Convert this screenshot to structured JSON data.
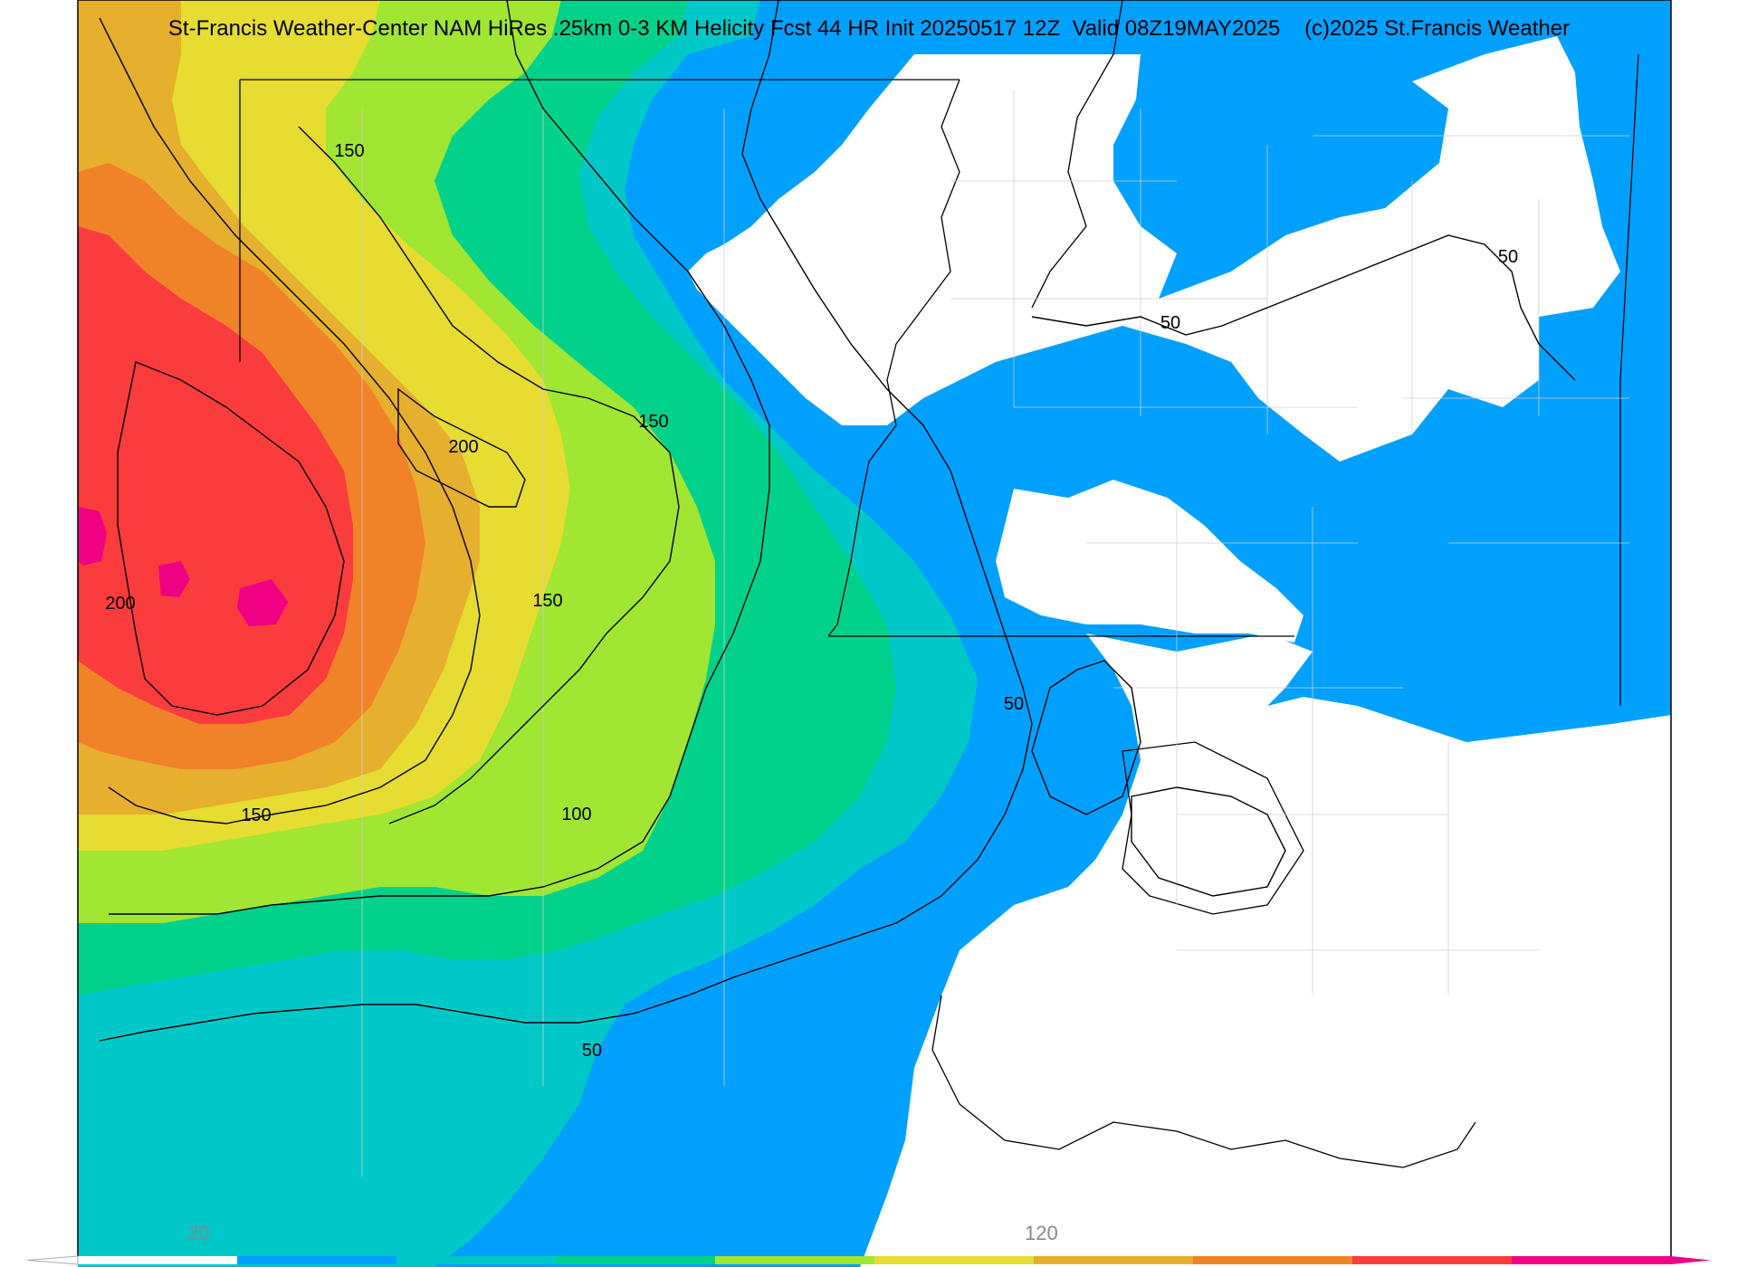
{
  "title": "St-Francis Weather-Center NAM HiRes .25km 0-3 KM Helicity Fcst 44 HR Init 20250517 12Z  Valid 08Z19MAY2025    (c)2025 St.Francis Weather",
  "contour_labels": [
    "150",
    "150",
    "200",
    "200",
    "150",
    "150",
    "100",
    "50",
    "50",
    "50",
    "50"
  ],
  "colorbar": {
    "labels": [
      "20",
      "120"
    ],
    "colors": [
      "#ffffff",
      "#00a0ff",
      "#00c8c8",
      "#00d28c",
      "#a0e632",
      "#e6dc32",
      "#e6af2d",
      "#f08228",
      "#fa3c3c",
      "#f00082"
    ]
  },
  "palette": {
    "blue": "#00a0ff",
    "cyan": "#00c8c8",
    "green": "#00d28c",
    "lime": "#a0e632",
    "yellow": "#e6dc32",
    "gold": "#e6af2d",
    "orange": "#f08228",
    "red": "#fa3c3c",
    "magenta": "#f00082"
  }
}
